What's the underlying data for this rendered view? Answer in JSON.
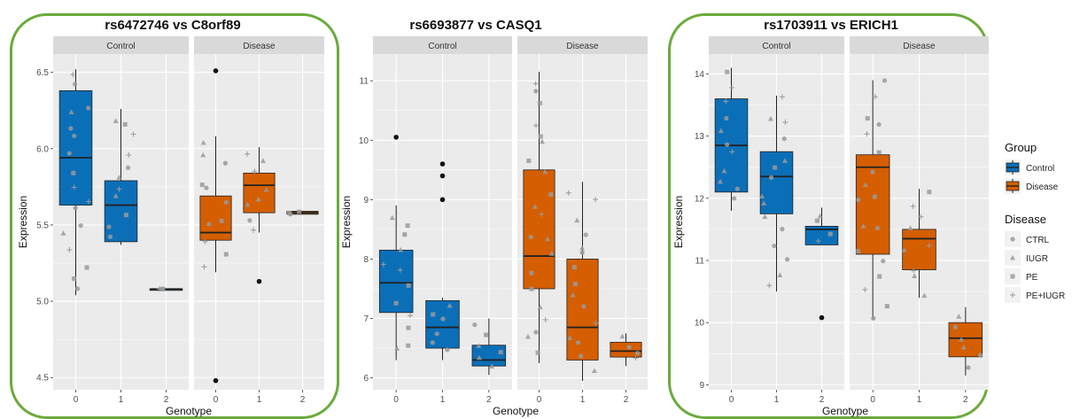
{
  "chart_data": [
    {
      "type": "box",
      "title": "rs6472746 vs C8orf89",
      "highlighted": true,
      "xlabel": "Genotype",
      "ylabel": "Expression",
      "ylim": [
        4.42,
        6.62
      ],
      "yticks": [
        4.5,
        5.0,
        5.5,
        6.0,
        6.5
      ],
      "panels": [
        {
          "name": "Control",
          "group": "Control",
          "boxes": [
            {
              "genotype": "0",
              "min": 5.04,
              "q1": 5.63,
              "median": 5.94,
              "q3": 6.38,
              "max": 6.52,
              "outliers": []
            },
            {
              "genotype": "1",
              "min": 5.37,
              "q1": 5.39,
              "median": 5.63,
              "q3": 5.79,
              "max": 6.26,
              "outliers": []
            },
            {
              "genotype": "2",
              "min": 5.08,
              "q1": 5.08,
              "median": 5.08,
              "q3": 5.08,
              "max": 5.08,
              "outliers": []
            }
          ]
        },
        {
          "name": "Disease",
          "group": "Disease",
          "boxes": [
            {
              "genotype": "0",
              "min": 5.19,
              "q1": 5.4,
              "median": 5.45,
              "q3": 5.69,
              "max": 6.08,
              "outliers": [
                6.51,
                4.48
              ]
            },
            {
              "genotype": "1",
              "min": 5.45,
              "q1": 5.58,
              "median": 5.76,
              "q3": 5.84,
              "max": 6.01,
              "outliers": [
                5.13
              ]
            },
            {
              "genotype": "2",
              "min": 5.57,
              "q1": 5.57,
              "median": 5.58,
              "q3": 5.59,
              "max": 5.59,
              "outliers": []
            }
          ]
        }
      ]
    },
    {
      "type": "box",
      "title": "rs6693877 vs CASQ1",
      "highlighted": false,
      "xlabel": "Genotype",
      "ylabel": "Expression",
      "ylim": [
        5.8,
        11.45
      ],
      "yticks": [
        6,
        7,
        8,
        9,
        10,
        11
      ],
      "panels": [
        {
          "name": "Control",
          "group": "Control",
          "boxes": [
            {
              "genotype": "0",
              "min": 6.3,
              "q1": 7.1,
              "median": 7.6,
              "q3": 8.15,
              "max": 8.9,
              "outliers": [
                10.05
              ]
            },
            {
              "genotype": "1",
              "min": 6.3,
              "q1": 6.5,
              "median": 6.85,
              "q3": 7.3,
              "max": 7.35,
              "outliers": [
                9.6,
                9.4,
                9.0
              ]
            },
            {
              "genotype": "2",
              "min": 6.05,
              "q1": 6.2,
              "median": 6.3,
              "q3": 6.55,
              "max": 7.0,
              "outliers": []
            }
          ]
        },
        {
          "name": "Disease",
          "group": "Disease",
          "boxes": [
            {
              "genotype": "0",
              "min": 6.25,
              "q1": 7.5,
              "median": 8.05,
              "q3": 9.5,
              "max": 11.15,
              "outliers": []
            },
            {
              "genotype": "1",
              "min": 5.95,
              "q1": 6.3,
              "median": 6.85,
              "q3": 8.0,
              "max": 9.3,
              "outliers": []
            },
            {
              "genotype": "2",
              "min": 6.2,
              "q1": 6.35,
              "median": 6.45,
              "q3": 6.6,
              "max": 6.75,
              "outliers": []
            }
          ]
        }
      ]
    },
    {
      "type": "box",
      "title": "rs1703911 vs ERICH1",
      "highlighted": true,
      "xlabel": "Genotype",
      "ylabel": "Expression",
      "ylim": [
        8.92,
        14.32
      ],
      "yticks": [
        9,
        10,
        11,
        12,
        13,
        14
      ],
      "panels": [
        {
          "name": "Control",
          "group": "Control",
          "boxes": [
            {
              "genotype": "0",
              "min": 11.8,
              "q1": 12.1,
              "median": 12.85,
              "q3": 13.6,
              "max": 14.1,
              "outliers": []
            },
            {
              "genotype": "1",
              "min": 10.5,
              "q1": 11.75,
              "median": 12.35,
              "q3": 12.75,
              "max": 13.65,
              "outliers": []
            },
            {
              "genotype": "2",
              "min": 11.25,
              "q1": 11.25,
              "median": 11.5,
              "q3": 11.55,
              "max": 11.85,
              "outliers": [
                10.08
              ]
            }
          ]
        },
        {
          "name": "Disease",
          "group": "Disease",
          "boxes": [
            {
              "genotype": "0",
              "min": 10.05,
              "q1": 11.1,
              "median": 12.5,
              "q3": 12.7,
              "max": 13.9,
              "outliers": []
            },
            {
              "genotype": "1",
              "min": 10.4,
              "q1": 10.85,
              "median": 11.35,
              "q3": 11.5,
              "max": 12.15,
              "outliers": []
            },
            {
              "genotype": "2",
              "min": 9.15,
              "q1": 9.45,
              "median": 9.75,
              "q3": 10.0,
              "max": 10.25,
              "outliers": []
            }
          ]
        }
      ]
    }
  ],
  "legend": {
    "group_title": "Group",
    "group_items": [
      {
        "label": "Control",
        "color": "#0b6fb8"
      },
      {
        "label": "Disease",
        "color": "#d55e00"
      }
    ],
    "disease_title": "Disease",
    "disease_items": [
      {
        "label": "CTRL",
        "shape": "circle"
      },
      {
        "label": "IUGR",
        "shape": "triangle"
      },
      {
        "label": "PE",
        "shape": "square"
      },
      {
        "label": "PE+IUGR",
        "shape": "plus"
      }
    ]
  },
  "colors": {
    "control": "#0b6fb8",
    "disease": "#d55e00",
    "panel_background": "#ebebeb",
    "strip_background": "#d9d9d9",
    "highlight_border": "#6aab3c"
  }
}
